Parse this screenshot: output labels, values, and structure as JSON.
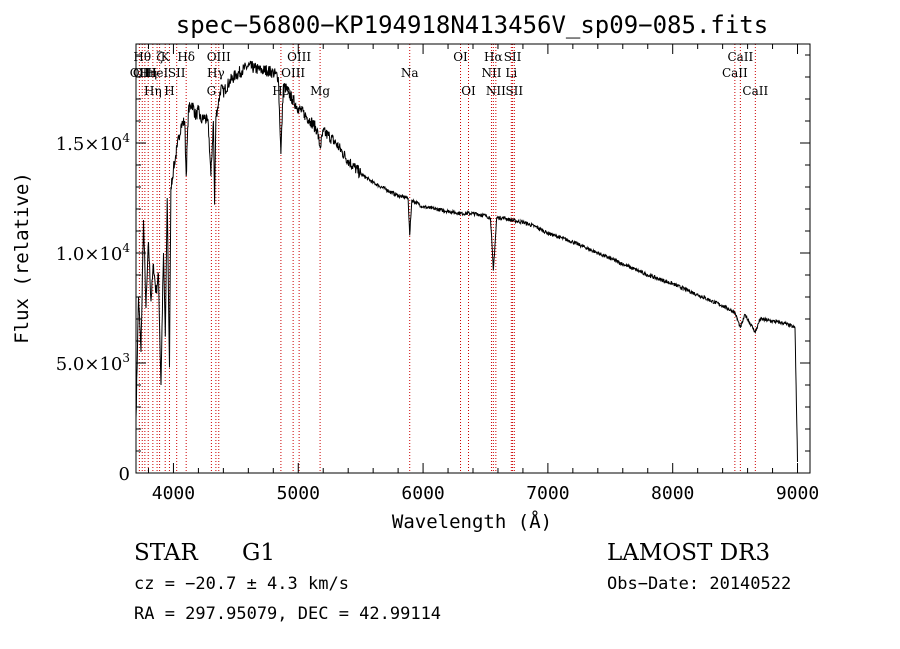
{
  "chart_data": {
    "type": "line",
    "title": "spec−56800−KP194918N413456V_sp09−085.fits",
    "xlabel": "Wavelength (Å)",
    "ylabel": "Flux (relative)",
    "xlim": [
      3700,
      9100
    ],
    "ylim": [
      0,
      19500
    ],
    "x_ticks": [
      {
        "value": 4000,
        "label": "4000"
      },
      {
        "value": 5000,
        "label": "5000"
      },
      {
        "value": 6000,
        "label": "6000"
      },
      {
        "value": 7000,
        "label": "7000"
      },
      {
        "value": 8000,
        "label": "8000"
      },
      {
        "value": 9000,
        "label": "9000"
      }
    ],
    "y_ticks": [
      {
        "value": 0,
        "mantissa": "0",
        "exp": ""
      },
      {
        "value": 5000,
        "mantissa": "5.0×10",
        "exp": "3"
      },
      {
        "value": 10000,
        "mantissa": "1.0×10",
        "exp": "4"
      },
      {
        "value": 15000,
        "mantissa": "1.5×10",
        "exp": "4"
      }
    ],
    "series": [
      {
        "name": "flux",
        "x": [
          3700,
          3720,
          3740,
          3760,
          3780,
          3800,
          3820,
          3840,
          3860,
          3880,
          3900,
          3920,
          3935,
          3950,
          3968,
          3980,
          4000,
          4030,
          4060,
          4090,
          4102,
          4120,
          4150,
          4180,
          4200,
          4220,
          4250,
          4280,
          4300,
          4320,
          4330,
          4340,
          4360,
          4380,
          4400,
          4450,
          4500,
          4550,
          4600,
          4650,
          4700,
          4750,
          4800,
          4840,
          4861,
          4880,
          4900,
          4950,
          5000,
          5050,
          5100,
          5150,
          5175,
          5200,
          5250,
          5300,
          5350,
          5400,
          5500,
          5600,
          5700,
          5800,
          5880,
          5893,
          5910,
          6000,
          6100,
          6200,
          6300,
          6400,
          6500,
          6540,
          6563,
          6590,
          6650,
          6700,
          6800,
          6900,
          7000,
          7200,
          7400,
          7600,
          7800,
          8000,
          8200,
          8400,
          8498,
          8542,
          8580,
          8662,
          8700,
          8800,
          8900,
          8980,
          9000
        ],
        "y": [
          2500,
          8000,
          5500,
          11500,
          7500,
          10500,
          7800,
          9500,
          8200,
          9000,
          4000,
          10000,
          6200,
          12500,
          4800,
          13000,
          13800,
          14800,
          15800,
          16000,
          13500,
          16500,
          16800,
          16200,
          16500,
          16000,
          16200,
          15800,
          13500,
          16000,
          12200,
          16200,
          16800,
          17500,
          17300,
          17800,
          18100,
          18300,
          18500,
          18400,
          18300,
          18300,
          18200,
          18000,
          14500,
          17600,
          17500,
          17000,
          16600,
          16300,
          16000,
          15600,
          14800,
          15500,
          15300,
          15000,
          14600,
          14200,
          13600,
          13200,
          12900,
          12600,
          12500,
          10800,
          12400,
          12100,
          12000,
          11900,
          11800,
          11800,
          11700,
          11600,
          9200,
          11600,
          11600,
          11500,
          11400,
          11200,
          10900,
          10500,
          10000,
          9500,
          9000,
          8600,
          8100,
          7600,
          7300,
          6600,
          7200,
          6400,
          7000,
          6900,
          6800,
          6600,
          500
        ]
      }
    ],
    "lines": [
      {
        "x": 3727,
        "label": "OII",
        "row": 2
      },
      {
        "x": 3750,
        "label": "Hθ",
        "row": 1
      },
      {
        "x": 3771,
        "label": "OIII",
        "row": 2
      },
      {
        "x": 3798,
        "label": "Hη",
        "row": 2
      },
      {
        "x": 3835,
        "label": "Hη",
        "row": 3
      },
      {
        "x": 3869,
        "label": "HeI",
        "row": 2
      },
      {
        "x": 3889,
        "label": "ζ",
        "row": 1
      },
      {
        "x": 3934,
        "label": "K",
        "row": 1
      },
      {
        "x": 3968,
        "label": "H",
        "row": 3
      },
      {
        "x": 4026,
        "label": "SII",
        "row": 2
      },
      {
        "x": 4102,
        "label": "Hδ",
        "row": 1
      },
      {
        "x": 4304,
        "label": "G",
        "row": 3
      },
      {
        "x": 4340,
        "label": "Hγ",
        "row": 2
      },
      {
        "x": 4363,
        "label": "OIII",
        "row": 1
      },
      {
        "x": 4861,
        "label": "Hβ",
        "row": 3
      },
      {
        "x": 4959,
        "label": "OIII",
        "row": 2
      },
      {
        "x": 5007,
        "label": "OIII",
        "row": 1
      },
      {
        "x": 5175,
        "label": "Mg",
        "row": 3
      },
      {
        "x": 5893,
        "label": "Na",
        "row": 2
      },
      {
        "x": 6300,
        "label": "OI",
        "row": 1
      },
      {
        "x": 6364,
        "label": "OI",
        "row": 3
      },
      {
        "x": 6548,
        "label": "NII",
        "row": 2
      },
      {
        "x": 6563,
        "label": "Hα",
        "row": 1
      },
      {
        "x": 6583,
        "label": "NII",
        "row": 3
      },
      {
        "x": 6707,
        "label": "Li",
        "row": 2
      },
      {
        "x": 6717,
        "label": "SII",
        "row": 1
      },
      {
        "x": 6731,
        "label": "SII",
        "row": 3
      },
      {
        "x": 8498,
        "label": "CaII",
        "row": 2
      },
      {
        "x": 8542,
        "label": "CaII",
        "row": 1
      },
      {
        "x": 8662,
        "label": "CaII",
        "row": 3
      }
    ]
  },
  "info": {
    "class": "STAR",
    "subclass": "G1",
    "survey": "LAMOST DR3",
    "cz": "cz = −20.7 ± 4.3 km/s",
    "obs_date": "Obs−Date: 20140522",
    "coords": "RA = 297.95079, DEC =  42.99114"
  },
  "colors": {
    "spectrum": "#000000",
    "line_markers": "#cc0000",
    "axes": "#000000"
  }
}
